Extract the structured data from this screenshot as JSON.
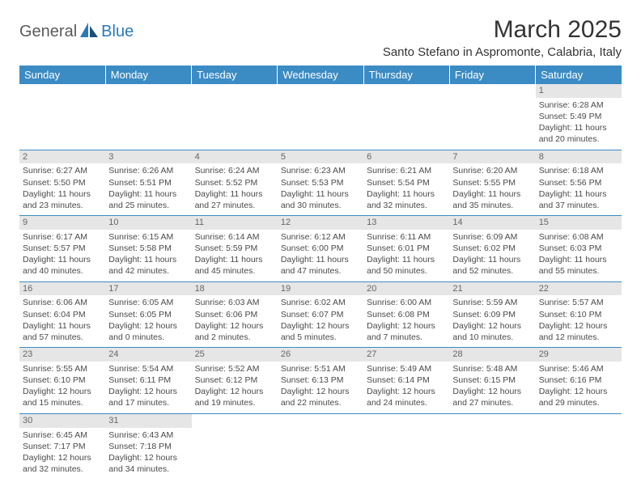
{
  "logo": {
    "word1": "General",
    "word2": "Blue"
  },
  "header": {
    "title": "March 2025",
    "location": "Santo Stefano in Aspromonte, Calabria, Italy"
  },
  "columns": [
    "Sunday",
    "Monday",
    "Tuesday",
    "Wednesday",
    "Thursday",
    "Friday",
    "Saturday"
  ],
  "colors": {
    "header_bg": "#3b8bc4",
    "header_fg": "#ffffff",
    "daynum_bg": "#e6e6e6",
    "border": "#3b8bc4",
    "text": "#4a4a4a"
  },
  "weeks": [
    [
      {
        "n": "",
        "sr": "",
        "ss": "",
        "d1": "",
        "d2": ""
      },
      {
        "n": "",
        "sr": "",
        "ss": "",
        "d1": "",
        "d2": ""
      },
      {
        "n": "",
        "sr": "",
        "ss": "",
        "d1": "",
        "d2": ""
      },
      {
        "n": "",
        "sr": "",
        "ss": "",
        "d1": "",
        "d2": ""
      },
      {
        "n": "",
        "sr": "",
        "ss": "",
        "d1": "",
        "d2": ""
      },
      {
        "n": "",
        "sr": "",
        "ss": "",
        "d1": "",
        "d2": ""
      },
      {
        "n": "1",
        "sr": "Sunrise: 6:28 AM",
        "ss": "Sunset: 5:49 PM",
        "d1": "Daylight: 11 hours",
        "d2": "and 20 minutes."
      }
    ],
    [
      {
        "n": "2",
        "sr": "Sunrise: 6:27 AM",
        "ss": "Sunset: 5:50 PM",
        "d1": "Daylight: 11 hours",
        "d2": "and 23 minutes."
      },
      {
        "n": "3",
        "sr": "Sunrise: 6:26 AM",
        "ss": "Sunset: 5:51 PM",
        "d1": "Daylight: 11 hours",
        "d2": "and 25 minutes."
      },
      {
        "n": "4",
        "sr": "Sunrise: 6:24 AM",
        "ss": "Sunset: 5:52 PM",
        "d1": "Daylight: 11 hours",
        "d2": "and 27 minutes."
      },
      {
        "n": "5",
        "sr": "Sunrise: 6:23 AM",
        "ss": "Sunset: 5:53 PM",
        "d1": "Daylight: 11 hours",
        "d2": "and 30 minutes."
      },
      {
        "n": "6",
        "sr": "Sunrise: 6:21 AM",
        "ss": "Sunset: 5:54 PM",
        "d1": "Daylight: 11 hours",
        "d2": "and 32 minutes."
      },
      {
        "n": "7",
        "sr": "Sunrise: 6:20 AM",
        "ss": "Sunset: 5:55 PM",
        "d1": "Daylight: 11 hours",
        "d2": "and 35 minutes."
      },
      {
        "n": "8",
        "sr": "Sunrise: 6:18 AM",
        "ss": "Sunset: 5:56 PM",
        "d1": "Daylight: 11 hours",
        "d2": "and 37 minutes."
      }
    ],
    [
      {
        "n": "9",
        "sr": "Sunrise: 6:17 AM",
        "ss": "Sunset: 5:57 PM",
        "d1": "Daylight: 11 hours",
        "d2": "and 40 minutes."
      },
      {
        "n": "10",
        "sr": "Sunrise: 6:15 AM",
        "ss": "Sunset: 5:58 PM",
        "d1": "Daylight: 11 hours",
        "d2": "and 42 minutes."
      },
      {
        "n": "11",
        "sr": "Sunrise: 6:14 AM",
        "ss": "Sunset: 5:59 PM",
        "d1": "Daylight: 11 hours",
        "d2": "and 45 minutes."
      },
      {
        "n": "12",
        "sr": "Sunrise: 6:12 AM",
        "ss": "Sunset: 6:00 PM",
        "d1": "Daylight: 11 hours",
        "d2": "and 47 minutes."
      },
      {
        "n": "13",
        "sr": "Sunrise: 6:11 AM",
        "ss": "Sunset: 6:01 PM",
        "d1": "Daylight: 11 hours",
        "d2": "and 50 minutes."
      },
      {
        "n": "14",
        "sr": "Sunrise: 6:09 AM",
        "ss": "Sunset: 6:02 PM",
        "d1": "Daylight: 11 hours",
        "d2": "and 52 minutes."
      },
      {
        "n": "15",
        "sr": "Sunrise: 6:08 AM",
        "ss": "Sunset: 6:03 PM",
        "d1": "Daylight: 11 hours",
        "d2": "and 55 minutes."
      }
    ],
    [
      {
        "n": "16",
        "sr": "Sunrise: 6:06 AM",
        "ss": "Sunset: 6:04 PM",
        "d1": "Daylight: 11 hours",
        "d2": "and 57 minutes."
      },
      {
        "n": "17",
        "sr": "Sunrise: 6:05 AM",
        "ss": "Sunset: 6:05 PM",
        "d1": "Daylight: 12 hours",
        "d2": "and 0 minutes."
      },
      {
        "n": "18",
        "sr": "Sunrise: 6:03 AM",
        "ss": "Sunset: 6:06 PM",
        "d1": "Daylight: 12 hours",
        "d2": "and 2 minutes."
      },
      {
        "n": "19",
        "sr": "Sunrise: 6:02 AM",
        "ss": "Sunset: 6:07 PM",
        "d1": "Daylight: 12 hours",
        "d2": "and 5 minutes."
      },
      {
        "n": "20",
        "sr": "Sunrise: 6:00 AM",
        "ss": "Sunset: 6:08 PM",
        "d1": "Daylight: 12 hours",
        "d2": "and 7 minutes."
      },
      {
        "n": "21",
        "sr": "Sunrise: 5:59 AM",
        "ss": "Sunset: 6:09 PM",
        "d1": "Daylight: 12 hours",
        "d2": "and 10 minutes."
      },
      {
        "n": "22",
        "sr": "Sunrise: 5:57 AM",
        "ss": "Sunset: 6:10 PM",
        "d1": "Daylight: 12 hours",
        "d2": "and 12 minutes."
      }
    ],
    [
      {
        "n": "23",
        "sr": "Sunrise: 5:55 AM",
        "ss": "Sunset: 6:10 PM",
        "d1": "Daylight: 12 hours",
        "d2": "and 15 minutes."
      },
      {
        "n": "24",
        "sr": "Sunrise: 5:54 AM",
        "ss": "Sunset: 6:11 PM",
        "d1": "Daylight: 12 hours",
        "d2": "and 17 minutes."
      },
      {
        "n": "25",
        "sr": "Sunrise: 5:52 AM",
        "ss": "Sunset: 6:12 PM",
        "d1": "Daylight: 12 hours",
        "d2": "and 19 minutes."
      },
      {
        "n": "26",
        "sr": "Sunrise: 5:51 AM",
        "ss": "Sunset: 6:13 PM",
        "d1": "Daylight: 12 hours",
        "d2": "and 22 minutes."
      },
      {
        "n": "27",
        "sr": "Sunrise: 5:49 AM",
        "ss": "Sunset: 6:14 PM",
        "d1": "Daylight: 12 hours",
        "d2": "and 24 minutes."
      },
      {
        "n": "28",
        "sr": "Sunrise: 5:48 AM",
        "ss": "Sunset: 6:15 PM",
        "d1": "Daylight: 12 hours",
        "d2": "and 27 minutes."
      },
      {
        "n": "29",
        "sr": "Sunrise: 5:46 AM",
        "ss": "Sunset: 6:16 PM",
        "d1": "Daylight: 12 hours",
        "d2": "and 29 minutes."
      }
    ],
    [
      {
        "n": "30",
        "sr": "Sunrise: 6:45 AM",
        "ss": "Sunset: 7:17 PM",
        "d1": "Daylight: 12 hours",
        "d2": "and 32 minutes."
      },
      {
        "n": "31",
        "sr": "Sunrise: 6:43 AM",
        "ss": "Sunset: 7:18 PM",
        "d1": "Daylight: 12 hours",
        "d2": "and 34 minutes."
      },
      {
        "n": "",
        "sr": "",
        "ss": "",
        "d1": "",
        "d2": ""
      },
      {
        "n": "",
        "sr": "",
        "ss": "",
        "d1": "",
        "d2": ""
      },
      {
        "n": "",
        "sr": "",
        "ss": "",
        "d1": "",
        "d2": ""
      },
      {
        "n": "",
        "sr": "",
        "ss": "",
        "d1": "",
        "d2": ""
      },
      {
        "n": "",
        "sr": "",
        "ss": "",
        "d1": "",
        "d2": ""
      }
    ]
  ]
}
